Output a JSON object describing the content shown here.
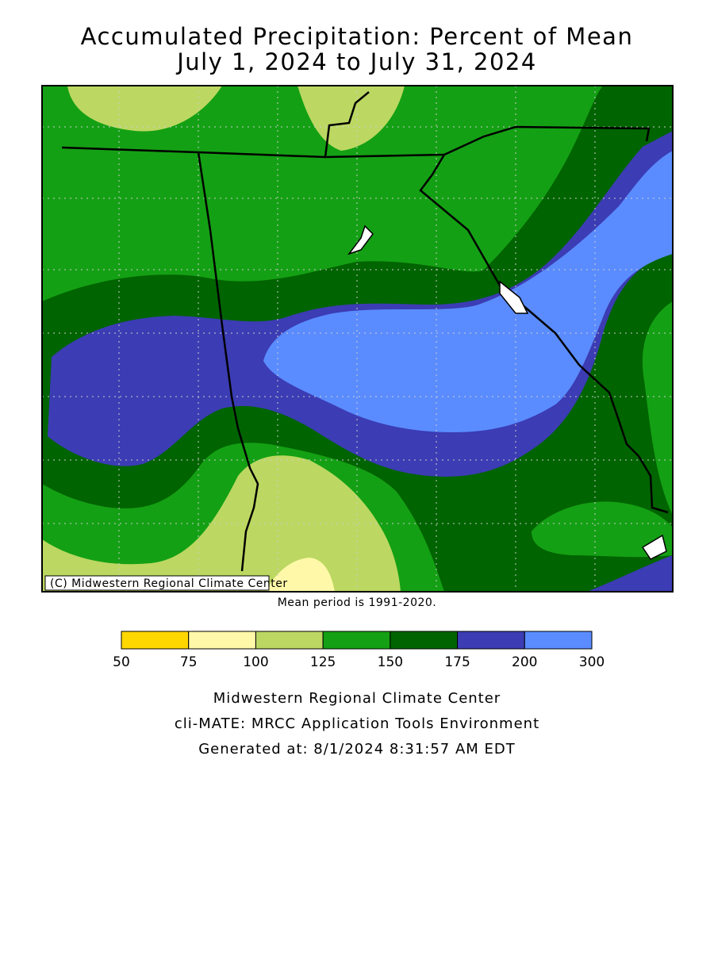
{
  "title": {
    "line1": "Accumulated Precipitation: Percent of Mean",
    "line2": "July 1, 2024 to July 31, 2024"
  },
  "copyright": "(C) Midwestern Regional Climate Center",
  "mean_period": "Mean period is 1991-2020.",
  "legend": {
    "ticks": [
      50,
      75,
      100,
      125,
      150,
      175,
      200,
      300
    ],
    "colors": [
      "#ffd700",
      "#fff8a8",
      "#bcd862",
      "#14a014",
      "#006400",
      "#3c3cb4",
      "#5a8cff"
    ]
  },
  "footer": [
    "Midwestern Regional Climate Center",
    "cli-MATE: MRCC Application Tools Environment",
    "Generated at: 8/1/2024 8:31:57 AM EDT"
  ]
}
